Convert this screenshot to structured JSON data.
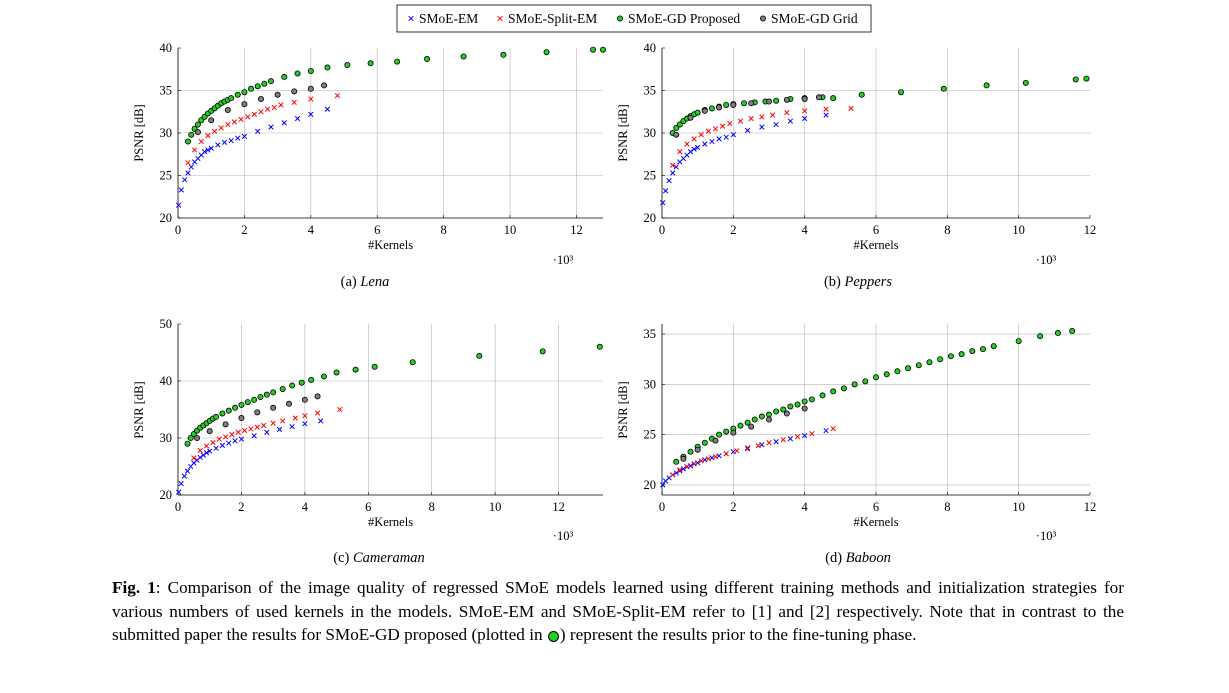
{
  "legend": [
    {
      "name": "SMoE-EM",
      "marker": "x",
      "color": "#0000ff"
    },
    {
      "name": "SMoE-Split-EM",
      "marker": "x",
      "color": "#ff0000"
    },
    {
      "name": "SMoE-GD Proposed",
      "marker": "circle",
      "color": "#22d022"
    },
    {
      "name": "SMoE-GD Grid",
      "marker": "circle",
      "color": "#7f7f7f"
    }
  ],
  "caption": {
    "label": "Fig. 1",
    "text1": ": Comparison of the image quality of regressed SMoE models learned using different training methods and initialization strategies for various numbers of used kernels in the models. SMoE-EM and SMoE-Split-EM refer to [1] and [2] respectively. Note that in contrast to the submitted paper the results for SMoE-GD proposed (plotted in ",
    "text2": ") represent the results prior to the fine-tuning phase."
  },
  "chart_data": [
    {
      "type": "scatter",
      "subcaption_prefix": "(a) ",
      "subcaption_name": "Lena",
      "xlabel": "#Kernels",
      "ylabel": "PSNR [dB]",
      "x_multiplier": "·10³",
      "xlim": [
        0,
        12.8
      ],
      "ylim": [
        20,
        40
      ],
      "xticks": [
        0,
        2,
        4,
        6,
        8,
        10,
        12
      ],
      "yticks": [
        20,
        25,
        30,
        35,
        40
      ],
      "grid": true,
      "series": [
        {
          "name": "SMoE-EM",
          "x": [
            0.02,
            0.1,
            0.2,
            0.3,
            0.4,
            0.5,
            0.6,
            0.7,
            0.8,
            0.9,
            1.0,
            1.2,
            1.4,
            1.6,
            1.8,
            2.0,
            2.4,
            2.8,
            3.2,
            3.6,
            4.0,
            4.5
          ],
          "y": [
            21.5,
            23.3,
            24.5,
            25.3,
            26.0,
            26.6,
            27.0,
            27.4,
            27.8,
            28.0,
            28.2,
            28.6,
            28.9,
            29.1,
            29.4,
            29.6,
            30.2,
            30.7,
            31.2,
            31.7,
            32.2,
            32.8
          ]
        },
        {
          "name": "SMoE-Split-EM",
          "x": [
            0.3,
            0.5,
            0.7,
            0.9,
            1.1,
            1.3,
            1.5,
            1.7,
            1.9,
            2.1,
            2.3,
            2.5,
            2.7,
            2.9,
            3.1,
            3.5,
            4.0,
            4.8
          ],
          "y": [
            26.5,
            28.0,
            29.0,
            29.7,
            30.2,
            30.6,
            31.0,
            31.3,
            31.6,
            31.9,
            32.2,
            32.5,
            32.8,
            33.0,
            33.3,
            33.6,
            34.0,
            34.4
          ]
        },
        {
          "name": "SMoE-GD Proposed",
          "x": [
            0.3,
            0.4,
            0.5,
            0.6,
            0.7,
            0.8,
            0.9,
            1.0,
            1.1,
            1.2,
            1.3,
            1.4,
            1.5,
            1.6,
            1.8,
            2.0,
            2.2,
            2.4,
            2.6,
            2.8,
            3.2,
            3.6,
            4.0,
            4.5,
            5.1,
            5.8,
            6.6,
            7.5,
            8.6,
            9.8,
            11.1,
            12.5,
            12.8
          ],
          "y": [
            29.0,
            29.8,
            30.5,
            31.0,
            31.5,
            31.9,
            32.3,
            32.6,
            32.9,
            33.2,
            33.5,
            33.7,
            33.9,
            34.1,
            34.5,
            34.8,
            35.2,
            35.5,
            35.8,
            36.1,
            36.6,
            37.0,
            37.3,
            37.7,
            38.0,
            38.2,
            38.4,
            38.7,
            39.0,
            39.2,
            39.5,
            39.8,
            39.8
          ]
        },
        {
          "name": "SMoE-GD Grid",
          "x": [
            0.6,
            1.0,
            1.5,
            2.0,
            2.5,
            3.0,
            3.5,
            4.0,
            4.4
          ],
          "y": [
            30.1,
            31.5,
            32.7,
            33.4,
            34.0,
            34.5,
            34.9,
            35.2,
            35.6
          ]
        }
      ]
    },
    {
      "type": "scatter",
      "subcaption_prefix": "(b) ",
      "subcaption_name": "Peppers",
      "xlabel": "#Kernels",
      "ylabel": "PSNR [dB]",
      "x_multiplier": "·10³",
      "xlim": [
        0,
        12
      ],
      "ylim": [
        20,
        40
      ],
      "xticks": [
        0,
        2,
        4,
        6,
        8,
        10,
        12
      ],
      "yticks": [
        20,
        25,
        30,
        35,
        40
      ],
      "grid": true,
      "series": [
        {
          "name": "SMoE-EM",
          "x": [
            0.02,
            0.1,
            0.2,
            0.3,
            0.4,
            0.5,
            0.6,
            0.7,
            0.8,
            0.9,
            1.0,
            1.2,
            1.4,
            1.6,
            1.8,
            2.0,
            2.4,
            2.8,
            3.2,
            3.6,
            4.0,
            4.6
          ],
          "y": [
            21.8,
            23.2,
            24.4,
            25.3,
            26.0,
            26.6,
            27.0,
            27.4,
            27.8,
            28.1,
            28.3,
            28.7,
            29.0,
            29.3,
            29.5,
            29.8,
            30.3,
            30.7,
            31.0,
            31.4,
            31.7,
            32.1
          ]
        },
        {
          "name": "SMoE-Split-EM",
          "x": [
            0.3,
            0.5,
            0.7,
            0.9,
            1.1,
            1.3,
            1.5,
            1.7,
            1.9,
            2.2,
            2.5,
            2.8,
            3.1,
            3.5,
            4.0,
            4.6,
            5.3
          ],
          "y": [
            26.2,
            27.8,
            28.7,
            29.3,
            29.8,
            30.2,
            30.5,
            30.8,
            31.1,
            31.4,
            31.7,
            31.9,
            32.1,
            32.4,
            32.6,
            32.8,
            32.9
          ]
        },
        {
          "name": "SMoE-GD Proposed",
          "x": [
            0.3,
            0.4,
            0.5,
            0.6,
            0.7,
            0.8,
            0.9,
            1.0,
            1.2,
            1.4,
            1.6,
            1.8,
            2.0,
            2.3,
            2.6,
            2.9,
            3.2,
            3.6,
            4.0,
            4.5,
            4.8,
            5.6,
            6.7,
            7.9,
            9.1,
            10.2,
            11.6,
            11.9
          ],
          "y": [
            30.0,
            30.6,
            31.0,
            31.4,
            31.7,
            32.0,
            32.2,
            32.4,
            32.7,
            32.9,
            33.1,
            33.3,
            33.4,
            33.5,
            33.6,
            33.7,
            33.8,
            34.0,
            34.1,
            34.2,
            34.1,
            34.5,
            34.8,
            35.2,
            35.6,
            35.9,
            36.3,
            36.4
          ]
        },
        {
          "name": "SMoE-GD Grid",
          "x": [
            0.4,
            0.8,
            1.2,
            1.6,
            2.0,
            2.5,
            3.0,
            3.5,
            4.0,
            4.4
          ],
          "y": [
            29.8,
            31.8,
            32.6,
            33.0,
            33.3,
            33.5,
            33.7,
            33.9,
            34.0,
            34.2
          ]
        }
      ]
    },
    {
      "type": "scatter",
      "subcaption_prefix": "(c) ",
      "subcaption_name": "Cameraman",
      "xlabel": "#Kernels",
      "ylabel": "PSNR [dB]",
      "x_multiplier": "·10³",
      "xlim": [
        0,
        13.4
      ],
      "ylim": [
        20,
        50
      ],
      "xticks": [
        0,
        2,
        4,
        6,
        8,
        10,
        12
      ],
      "yticks": [
        20,
        30,
        40,
        50
      ],
      "grid": true,
      "series": [
        {
          "name": "SMoE-EM",
          "x": [
            0.02,
            0.1,
            0.2,
            0.3,
            0.4,
            0.5,
            0.6,
            0.7,
            0.8,
            0.9,
            1.0,
            1.2,
            1.4,
            1.6,
            1.8,
            2.0,
            2.4,
            2.8,
            3.2,
            3.6,
            4.0,
            4.5
          ],
          "y": [
            20.5,
            22.0,
            23.3,
            24.2,
            25.0,
            25.6,
            26.1,
            26.6,
            27.0,
            27.4,
            27.7,
            28.2,
            28.7,
            29.1,
            29.5,
            29.8,
            30.4,
            31.0,
            31.5,
            32.0,
            32.5,
            33.0
          ]
        },
        {
          "name": "SMoE-Split-EM",
          "x": [
            0.5,
            0.7,
            0.9,
            1.1,
            1.3,
            1.5,
            1.7,
            1.9,
            2.1,
            2.3,
            2.5,
            2.7,
            3.0,
            3.3,
            3.7,
            4.0,
            4.4,
            5.1
          ],
          "y": [
            26.5,
            27.8,
            28.6,
            29.2,
            29.8,
            30.2,
            30.6,
            31.0,
            31.3,
            31.6,
            31.9,
            32.2,
            32.6,
            33.0,
            33.5,
            33.9,
            34.4,
            35.0
          ]
        },
        {
          "name": "SMoE-GD Proposed",
          "x": [
            0.3,
            0.4,
            0.5,
            0.6,
            0.7,
            0.8,
            0.9,
            1.0,
            1.1,
            1.2,
            1.4,
            1.6,
            1.8,
            2.0,
            2.2,
            2.4,
            2.6,
            2.8,
            3.0,
            3.3,
            3.6,
            3.9,
            4.2,
            4.6,
            5.0,
            5.6,
            6.2,
            7.4,
            9.5,
            11.5,
            13.3
          ],
          "y": [
            29.0,
            30.0,
            30.7,
            31.3,
            31.8,
            32.2,
            32.6,
            33.0,
            33.4,
            33.7,
            34.3,
            34.8,
            35.3,
            35.8,
            36.3,
            36.7,
            37.2,
            37.6,
            38.0,
            38.6,
            39.2,
            39.7,
            40.2,
            40.8,
            41.5,
            42.0,
            42.5,
            43.3,
            44.4,
            45.2,
            46.0
          ]
        },
        {
          "name": "SMoE-GD Grid",
          "x": [
            0.6,
            1.0,
            1.5,
            2.0,
            2.5,
            3.0,
            3.5,
            4.0,
            4.4
          ],
          "y": [
            30.0,
            31.2,
            32.4,
            33.5,
            34.5,
            35.3,
            36.0,
            36.7,
            37.3
          ]
        }
      ]
    },
    {
      "type": "scatter",
      "subcaption_prefix": "(d) ",
      "subcaption_name": "Baboon",
      "xlabel": "#Kernels",
      "ylabel": "PSNR [dB]",
      "x_multiplier": "·10³",
      "xlim": [
        0,
        12
      ],
      "ylim": [
        19,
        36
      ],
      "xticks": [
        0,
        2,
        4,
        6,
        8,
        10,
        12
      ],
      "yticks": [
        20,
        25,
        30,
        35
      ],
      "grid": true,
      "series": [
        {
          "name": "SMoE-EM",
          "x": [
            0.02,
            0.1,
            0.2,
            0.3,
            0.4,
            0.5,
            0.6,
            0.7,
            0.8,
            0.9,
            1.0,
            1.2,
            1.4,
            1.6,
            1.8,
            2.0,
            2.4,
            2.8,
            3.2,
            3.6,
            4.0,
            4.6
          ],
          "y": [
            20.0,
            20.4,
            20.7,
            21.0,
            21.2,
            21.4,
            21.6,
            21.8,
            21.9,
            22.1,
            22.2,
            22.5,
            22.7,
            22.9,
            23.1,
            23.3,
            23.6,
            24.0,
            24.3,
            24.6,
            24.9,
            25.4
          ]
        },
        {
          "name": "SMoE-Split-EM",
          "x": [
            0.3,
            0.5,
            0.7,
            0.9,
            1.1,
            1.3,
            1.5,
            1.8,
            2.1,
            2.4,
            2.7,
            3.0,
            3.4,
            3.8,
            4.2,
            4.8
          ],
          "y": [
            21.0,
            21.5,
            21.8,
            22.1,
            22.4,
            22.6,
            22.8,
            23.1,
            23.4,
            23.7,
            23.9,
            24.2,
            24.5,
            24.8,
            25.1,
            25.6
          ]
        },
        {
          "name": "SMoE-GD Proposed",
          "x": [
            0.4,
            0.6,
            0.8,
            1.0,
            1.2,
            1.4,
            1.6,
            1.8,
            2.0,
            2.2,
            2.4,
            2.6,
            2.8,
            3.0,
            3.2,
            3.4,
            3.6,
            3.8,
            4.0,
            4.2,
            4.5,
            4.8,
            5.1,
            5.4,
            5.7,
            6.0,
            6.3,
            6.6,
            6.9,
            7.2,
            7.5,
            7.8,
            8.1,
            8.4,
            8.7,
            9.0,
            9.3,
            10.0,
            10.6,
            11.1,
            11.5
          ],
          "y": [
            22.3,
            22.8,
            23.3,
            23.8,
            24.2,
            24.6,
            25.0,
            25.3,
            25.6,
            25.9,
            26.2,
            26.5,
            26.8,
            27.0,
            27.3,
            27.5,
            27.8,
            28.0,
            28.3,
            28.5,
            28.9,
            29.3,
            29.6,
            30.0,
            30.3,
            30.7,
            31.0,
            31.3,
            31.6,
            31.9,
            32.2,
            32.5,
            32.8,
            33.0,
            33.3,
            33.5,
            33.8,
            34.3,
            34.8,
            35.1,
            35.3
          ]
        },
        {
          "name": "SMoE-GD Grid",
          "x": [
            0.6,
            1.0,
            1.5,
            2.0,
            2.5,
            3.0,
            3.5,
            4.0
          ],
          "y": [
            22.6,
            23.5,
            24.4,
            25.2,
            25.8,
            26.5,
            27.1,
            27.6
          ]
        }
      ]
    }
  ]
}
